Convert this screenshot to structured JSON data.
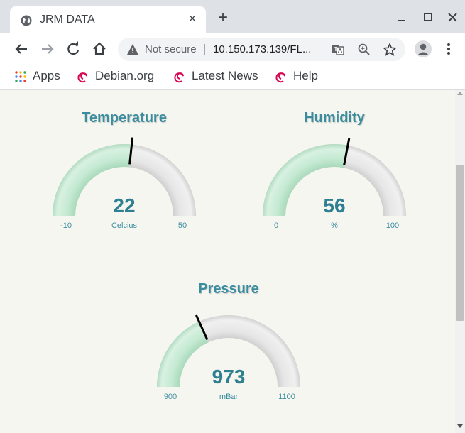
{
  "tab": {
    "title": "JRM DATA",
    "close_glyph": "×",
    "favicon": "globe-icon"
  },
  "new_tab_glyph": "+",
  "address_bar": {
    "security_label": "Not secure",
    "separator": "|",
    "url": "10.150.173.139/FL..."
  },
  "bookmarks": [
    {
      "label": "Apps",
      "icon": "apps-grid-icon"
    },
    {
      "label": "Debian.org",
      "icon": "debian-swirl-icon"
    },
    {
      "label": "Latest News",
      "icon": "debian-swirl-icon"
    },
    {
      "label": "Help",
      "icon": "debian-swirl-icon"
    }
  ],
  "colors": {
    "title": "#3a8d9e",
    "value": "#2f7f92",
    "gauge_fill": "#c5ead3",
    "gauge_track": "#e6e6e6",
    "page_bg": "#f6f6f1"
  },
  "gauges": [
    {
      "title": "Temperature",
      "value": 22,
      "min": -10,
      "max": 50,
      "unit": "Celcius"
    },
    {
      "title": "Humidity",
      "value": 56,
      "min": 0,
      "max": 100,
      "unit": "%"
    },
    {
      "title": "Pressure",
      "value": 973,
      "min": 900,
      "max": 1100,
      "unit": "mBar"
    }
  ]
}
